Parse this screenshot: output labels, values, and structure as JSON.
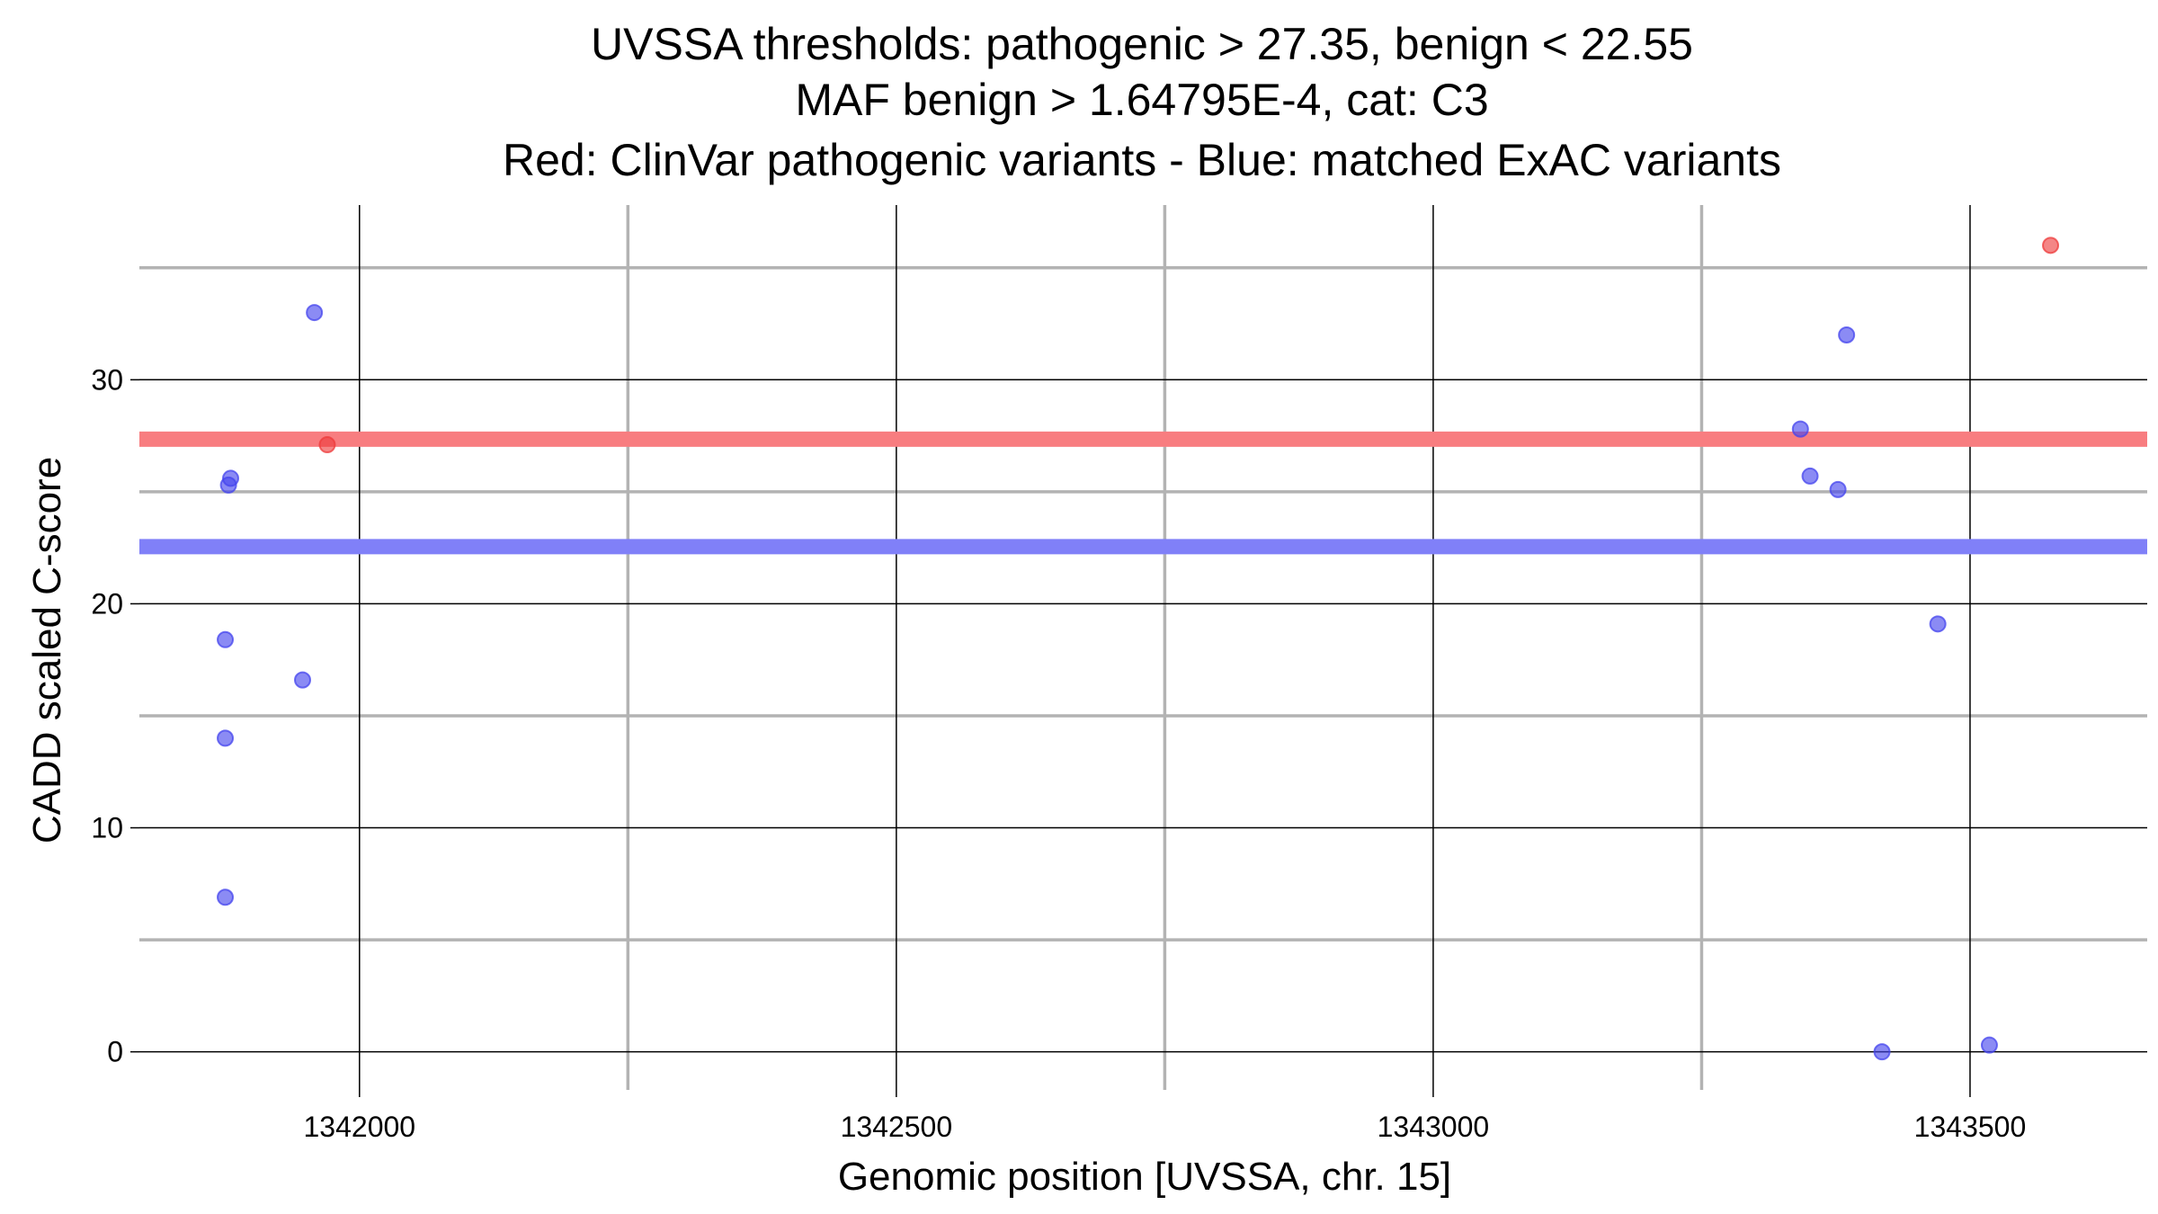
{
  "chart_data": {
    "type": "scatter",
    "title_lines": [
      "UVSSA thresholds: pathogenic > 27.35, benign < 22.55",
      "MAF benign > 1.64795E-4, cat: C3",
      "Red: ClinVar pathogenic variants - Blue: matched ExAC variants"
    ],
    "xlabel": "Genomic position [UVSSA, chr. 15]",
    "ylabel": "CADD scaled C-score",
    "xlim": [
      1341795,
      1343665
    ],
    "ylim": [
      -1.7,
      37.8
    ],
    "x_ticks": [
      1342000,
      1342500,
      1343000,
      1343500
    ],
    "x_tick_labels": [
      "1342000",
      "1342500",
      "1343000",
      "1343500"
    ],
    "x_minor_gridlines": [
      1342250,
      1342750,
      1343250
    ],
    "y_ticks": [
      0,
      10,
      20,
      30
    ],
    "y_tick_labels": [
      "0",
      "10",
      "20",
      "30"
    ],
    "y_minor_gridlines": [
      5,
      15,
      25,
      35
    ],
    "grid": true,
    "thresholds": [
      {
        "label": "pathogenic",
        "value": 27.35,
        "color": "#f87d80"
      },
      {
        "label": "benign",
        "value": 22.55,
        "color": "#8080f8"
      }
    ],
    "series": [
      {
        "color": "#ee3b3b",
        "points": [
          {
            "x": 1341970,
            "y": 27.1
          },
          {
            "x": 1343575,
            "y": 36.0
          }
        ]
      },
      {
        "color": "#4444ee",
        "points": [
          {
            "x": 1341958,
            "y": 33.0
          },
          {
            "x": 1341880,
            "y": 25.6
          },
          {
            "x": 1341878,
            "y": 25.3
          },
          {
            "x": 1341875,
            "y": 18.4
          },
          {
            "x": 1341947,
            "y": 16.6
          },
          {
            "x": 1341875,
            "y": 14.0
          },
          {
            "x": 1341875,
            "y": 6.9
          },
          {
            "x": 1343385,
            "y": 32.0
          },
          {
            "x": 1343342,
            "y": 27.8
          },
          {
            "x": 1343351,
            "y": 25.7
          },
          {
            "x": 1343377,
            "y": 25.1
          },
          {
            "x": 1343470,
            "y": 19.1
          },
          {
            "x": 1343418,
            "y": 0.0
          },
          {
            "x": 1343518,
            "y": 0.3
          }
        ]
      }
    ]
  }
}
